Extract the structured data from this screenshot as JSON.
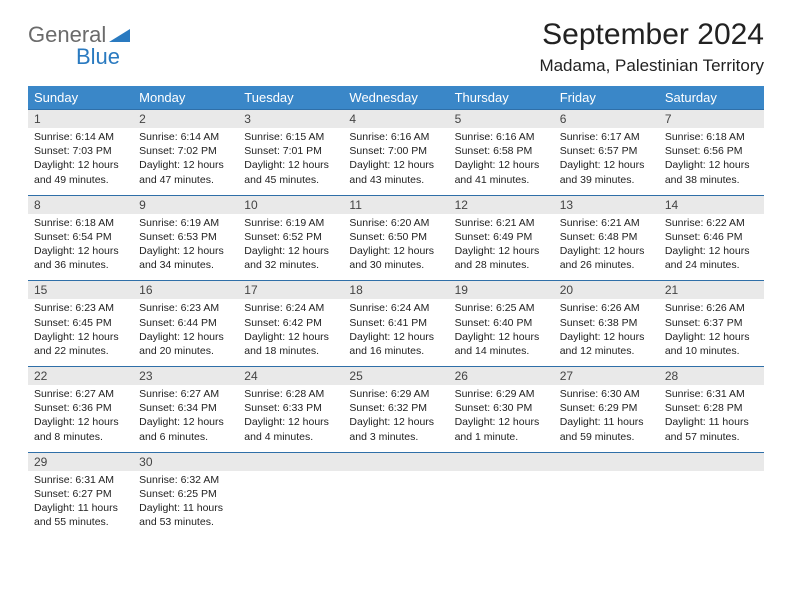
{
  "brand": {
    "general": "General",
    "blue": "Blue"
  },
  "title": "September 2024",
  "location": "Madama, Palestinian Territory",
  "colors": {
    "header_bg": "#3a87c8",
    "header_text": "#ffffff",
    "rule": "#2f6fa8",
    "daynum_bg": "#e9e9e9",
    "logo_gray": "#6b6b6b",
    "logo_blue": "#2a7ac0"
  },
  "layout": {
    "columns": 7,
    "weeks": 5,
    "font_family": "Arial",
    "title_fontsize_pt": 22,
    "location_fontsize_pt": 13,
    "header_fontsize_pt": 10,
    "daynum_fontsize_pt": 9,
    "body_fontsize_pt": 8
  },
  "weekdays": [
    "Sunday",
    "Monday",
    "Tuesday",
    "Wednesday",
    "Thursday",
    "Friday",
    "Saturday"
  ],
  "days": [
    {
      "n": "1",
      "sr": "6:14 AM",
      "ss": "7:03 PM",
      "dl": "12 hours and 49 minutes."
    },
    {
      "n": "2",
      "sr": "6:14 AM",
      "ss": "7:02 PM",
      "dl": "12 hours and 47 minutes."
    },
    {
      "n": "3",
      "sr": "6:15 AM",
      "ss": "7:01 PM",
      "dl": "12 hours and 45 minutes."
    },
    {
      "n": "4",
      "sr": "6:16 AM",
      "ss": "7:00 PM",
      "dl": "12 hours and 43 minutes."
    },
    {
      "n": "5",
      "sr": "6:16 AM",
      "ss": "6:58 PM",
      "dl": "12 hours and 41 minutes."
    },
    {
      "n": "6",
      "sr": "6:17 AM",
      "ss": "6:57 PM",
      "dl": "12 hours and 39 minutes."
    },
    {
      "n": "7",
      "sr": "6:18 AM",
      "ss": "6:56 PM",
      "dl": "12 hours and 38 minutes."
    },
    {
      "n": "8",
      "sr": "6:18 AM",
      "ss": "6:54 PM",
      "dl": "12 hours and 36 minutes."
    },
    {
      "n": "9",
      "sr": "6:19 AM",
      "ss": "6:53 PM",
      "dl": "12 hours and 34 minutes."
    },
    {
      "n": "10",
      "sr": "6:19 AM",
      "ss": "6:52 PM",
      "dl": "12 hours and 32 minutes."
    },
    {
      "n": "11",
      "sr": "6:20 AM",
      "ss": "6:50 PM",
      "dl": "12 hours and 30 minutes."
    },
    {
      "n": "12",
      "sr": "6:21 AM",
      "ss": "6:49 PM",
      "dl": "12 hours and 28 minutes."
    },
    {
      "n": "13",
      "sr": "6:21 AM",
      "ss": "6:48 PM",
      "dl": "12 hours and 26 minutes."
    },
    {
      "n": "14",
      "sr": "6:22 AM",
      "ss": "6:46 PM",
      "dl": "12 hours and 24 minutes."
    },
    {
      "n": "15",
      "sr": "6:23 AM",
      "ss": "6:45 PM",
      "dl": "12 hours and 22 minutes."
    },
    {
      "n": "16",
      "sr": "6:23 AM",
      "ss": "6:44 PM",
      "dl": "12 hours and 20 minutes."
    },
    {
      "n": "17",
      "sr": "6:24 AM",
      "ss": "6:42 PM",
      "dl": "12 hours and 18 minutes."
    },
    {
      "n": "18",
      "sr": "6:24 AM",
      "ss": "6:41 PM",
      "dl": "12 hours and 16 minutes."
    },
    {
      "n": "19",
      "sr": "6:25 AM",
      "ss": "6:40 PM",
      "dl": "12 hours and 14 minutes."
    },
    {
      "n": "20",
      "sr": "6:26 AM",
      "ss": "6:38 PM",
      "dl": "12 hours and 12 minutes."
    },
    {
      "n": "21",
      "sr": "6:26 AM",
      "ss": "6:37 PM",
      "dl": "12 hours and 10 minutes."
    },
    {
      "n": "22",
      "sr": "6:27 AM",
      "ss": "6:36 PM",
      "dl": "12 hours and 8 minutes."
    },
    {
      "n": "23",
      "sr": "6:27 AM",
      "ss": "6:34 PM",
      "dl": "12 hours and 6 minutes."
    },
    {
      "n": "24",
      "sr": "6:28 AM",
      "ss": "6:33 PM",
      "dl": "12 hours and 4 minutes."
    },
    {
      "n": "25",
      "sr": "6:29 AM",
      "ss": "6:32 PM",
      "dl": "12 hours and 3 minutes."
    },
    {
      "n": "26",
      "sr": "6:29 AM",
      "ss": "6:30 PM",
      "dl": "12 hours and 1 minute."
    },
    {
      "n": "27",
      "sr": "6:30 AM",
      "ss": "6:29 PM",
      "dl": "11 hours and 59 minutes."
    },
    {
      "n": "28",
      "sr": "6:31 AM",
      "ss": "6:28 PM",
      "dl": "11 hours and 57 minutes."
    },
    {
      "n": "29",
      "sr": "6:31 AM",
      "ss": "6:27 PM",
      "dl": "11 hours and 55 minutes."
    },
    {
      "n": "30",
      "sr": "6:32 AM",
      "ss": "6:25 PM",
      "dl": "11 hours and 53 minutes."
    }
  ],
  "labels": {
    "sunrise": "Sunrise:",
    "sunset": "Sunset:",
    "daylight": "Daylight:"
  }
}
